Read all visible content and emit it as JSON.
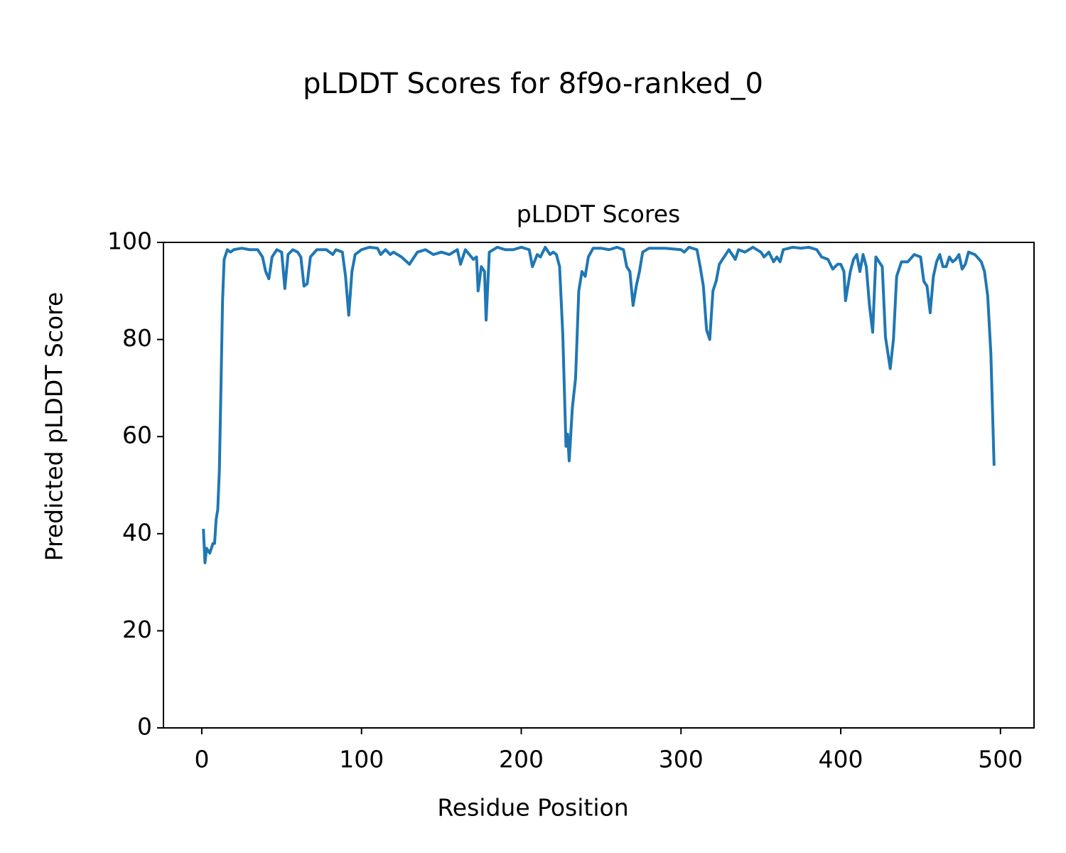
{
  "chart_data": {
    "type": "line",
    "title": "pLDDT Scores for 8f9o-ranked_0",
    "subtitle": "pLDDT Scores",
    "x_label": "Residue Position",
    "y_label": "Predicted pLDDT Score",
    "xlim": [
      -24,
      521
    ],
    "ylim": [
      0,
      100
    ],
    "xticks": [
      0,
      100,
      200,
      300,
      400,
      500
    ],
    "yticks": [
      0,
      20,
      40,
      60,
      80,
      100
    ],
    "grid": false,
    "series": [
      {
        "color": "#1f77b4",
        "x": [
          1,
          2,
          3,
          5,
          7,
          8,
          9,
          10,
          11,
          12,
          13,
          14,
          16,
          18,
          20,
          25,
          30,
          35,
          38,
          40,
          42,
          44,
          47,
          50,
          52,
          54,
          57,
          60,
          62,
          64,
          66,
          68,
          72,
          78,
          82,
          84,
          88,
          90,
          91,
          92,
          94,
          96,
          100,
          105,
          110,
          112,
          115,
          118,
          120,
          125,
          130,
          135,
          140,
          145,
          150,
          155,
          160,
          162,
          165,
          170,
          172,
          173,
          175,
          177,
          178,
          180,
          185,
          190,
          195,
          200,
          205,
          207,
          210,
          212,
          215,
          218,
          220,
          222,
          224,
          226,
          228,
          229,
          230,
          232,
          234,
          236,
          238,
          240,
          242,
          245,
          250,
          255,
          260,
          264,
          266,
          268,
          270,
          272,
          274,
          276,
          280,
          290,
          300,
          302,
          305,
          310,
          312,
          314,
          316,
          318,
          320,
          322,
          324,
          326,
          330,
          334,
          336,
          340,
          345,
          350,
          352,
          355,
          358,
          360,
          362,
          364,
          370,
          375,
          380,
          385,
          388,
          392,
          395,
          398,
          400,
          402,
          403,
          406,
          408,
          410,
          412,
          414,
          416,
          418,
          420,
          422,
          424,
          426,
          428,
          431,
          433,
          435,
          438,
          442,
          446,
          450,
          452,
          454,
          456,
          458,
          460,
          462,
          464,
          466,
          468,
          470,
          472,
          474,
          476,
          478,
          480,
          484,
          488,
          490,
          492,
          494,
          496
        ],
        "values": [
          41,
          34,
          37,
          36,
          38,
          38,
          43,
          45,
          53,
          70,
          88,
          96.5,
          98.5,
          98,
          98.5,
          98.8,
          98.5,
          98.5,
          97,
          94,
          92.5,
          97,
          98.5,
          98,
          90.5,
          97.5,
          98.5,
          98,
          97,
          91,
          91.5,
          97,
          98.5,
          98.5,
          97.5,
          98.5,
          98,
          93,
          89,
          85,
          94,
          97.5,
          98.5,
          99,
          98.8,
          97.5,
          98.5,
          97.5,
          98,
          97,
          95.5,
          98,
          98.5,
          97.5,
          98,
          97.5,
          98.5,
          95.5,
          98.5,
          96.5,
          97,
          90,
          95,
          94,
          84,
          98,
          99,
          98.5,
          98.5,
          99,
          98.5,
          95,
          97.5,
          97,
          99,
          97.5,
          98,
          97.5,
          95,
          81,
          58,
          60.5,
          55,
          66,
          72,
          90,
          94,
          93,
          97,
          98.8,
          98.8,
          98.5,
          99,
          98.5,
          95,
          94,
          87,
          91,
          94,
          98,
          98.8,
          98.8,
          98.5,
          98,
          99,
          98.5,
          95,
          91,
          82,
          80,
          90,
          92,
          95.5,
          96.5,
          98.5,
          96.5,
          98.5,
          98,
          99,
          98,
          97,
          98,
          96,
          97,
          96,
          98.5,
          99,
          98.8,
          99,
          98.5,
          97,
          96.5,
          94.5,
          95.5,
          95.5,
          94,
          88,
          94,
          96.5,
          97.5,
          94,
          97.5,
          95,
          87,
          81.5,
          97,
          96,
          95,
          80.5,
          74,
          80,
          93,
          96,
          96,
          97.5,
          97,
          92,
          91,
          85.5,
          93,
          96,
          97.5,
          95,
          95,
          97,
          96,
          96.5,
          97.5,
          94.5,
          95.5,
          98,
          97.5,
          96,
          94,
          89,
          77,
          54
        ]
      }
    ]
  }
}
